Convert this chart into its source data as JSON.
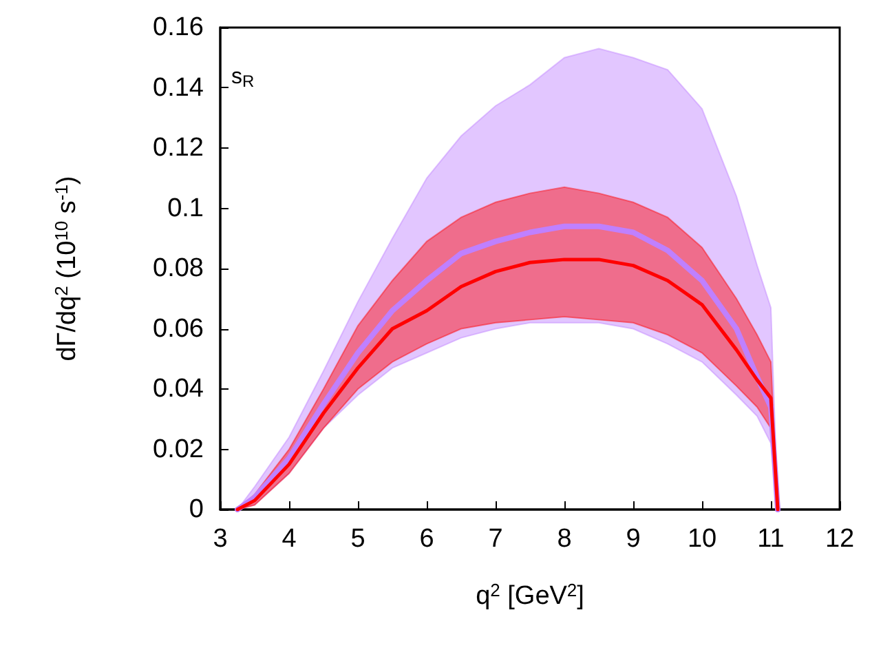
{
  "chart_data": {
    "type": "line",
    "xlabel": "q$^{2}$ [GeV$^{2}$]",
    "ylabel": "dΓ/dq$^{2}$ (10$^{10}$ s$^{-1}$)",
    "annotations": [
      "s$_{R}$"
    ],
    "x": [
      3.25,
      3.5,
      4,
      4.5,
      5,
      5.5,
      6,
      6.5,
      7,
      7.5,
      8,
      8.5,
      9,
      9.5,
      10,
      10.5,
      10.8,
      11,
      11.1
    ],
    "series": [
      {
        "color": "#bf80ff",
        "values": [
          0,
          0.004,
          0.017,
          0.035,
          0.052,
          0.066,
          0.076,
          0.085,
          0.089,
          0.092,
          0.094,
          0.094,
          0.092,
          0.086,
          0.076,
          0.06,
          0.044,
          0.034,
          0
        ],
        "lower": [
          0,
          0.0015,
          0.012,
          0.027,
          0.038,
          0.047,
          0.052,
          0.057,
          0.06,
          0.062,
          0.062,
          0.062,
          0.06,
          0.055,
          0.049,
          0.038,
          0.031,
          0.022,
          0
        ],
        "upper": [
          0,
          0.0076,
          0.024,
          0.046,
          0.069,
          0.09,
          0.11,
          0.124,
          0.134,
          0.141,
          0.15,
          0.153,
          0.15,
          0.146,
          0.133,
          0.104,
          0.081,
          0.067,
          0
        ]
      },
      {
        "color": "#ff0000",
        "values": [
          0,
          0.003,
          0.015,
          0.032,
          0.047,
          0.06,
          0.066,
          0.074,
          0.079,
          0.082,
          0.083,
          0.083,
          0.081,
          0.076,
          0.068,
          0.053,
          0.043,
          0.037,
          0
        ],
        "lower": [
          0,
          0.0015,
          0.012,
          0.027,
          0.04,
          0.049,
          0.055,
          0.06,
          0.062,
          0.063,
          0.064,
          0.063,
          0.062,
          0.058,
          0.052,
          0.041,
          0.034,
          0.027,
          0
        ],
        "upper": [
          0,
          0.005,
          0.02,
          0.04,
          0.061,
          0.076,
          0.089,
          0.097,
          0.102,
          0.105,
          0.107,
          0.105,
          0.102,
          0.097,
          0.087,
          0.07,
          0.058,
          0.049,
          0
        ]
      }
    ],
    "xlim": [
      3,
      12
    ],
    "xticks": [
      3,
      4,
      5,
      6,
      7,
      8,
      9,
      10,
      11,
      12
    ],
    "ylim": [
      0,
      0.16
    ],
    "yticks": [
      0,
      0.02,
      0.04,
      0.06,
      0.08,
      0.1,
      0.12,
      0.14,
      0.16
    ],
    "grid": false,
    "marker": "none",
    "line_style": "solid"
  }
}
